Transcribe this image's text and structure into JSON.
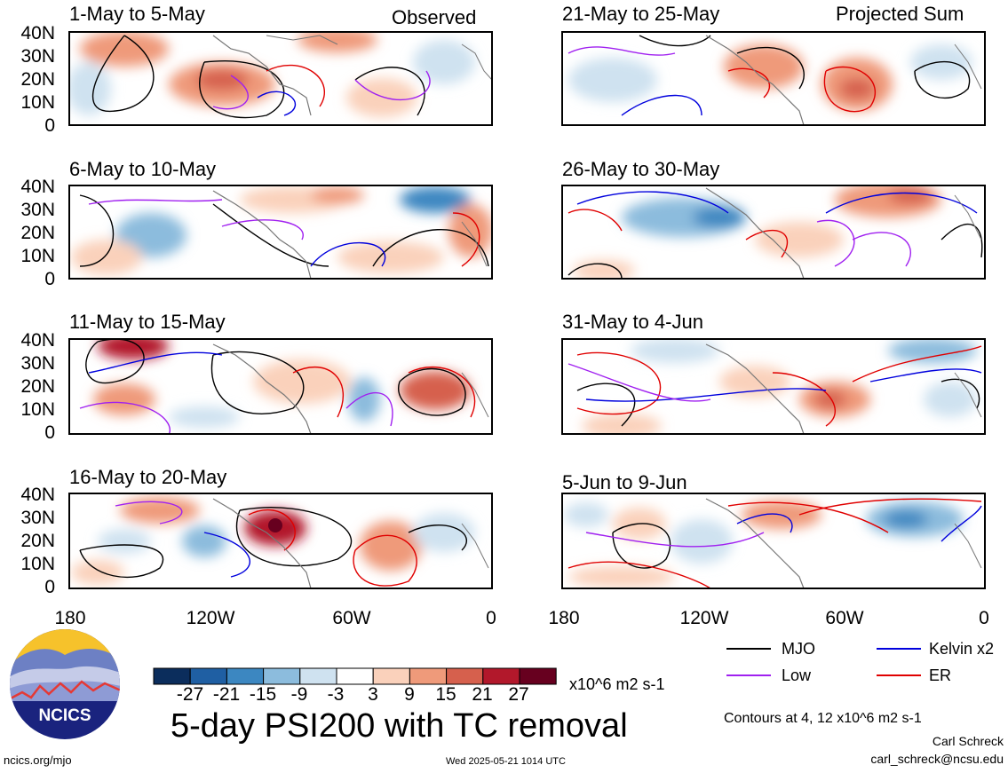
{
  "header": {
    "left_label": "Observed",
    "right_label": "Projected Sum"
  },
  "panels": [
    {
      "title": "1-May to 5-May",
      "kind": "observed"
    },
    {
      "title": "6-May to 10-May",
      "kind": "observed"
    },
    {
      "title": "11-May to 15-May",
      "kind": "observed"
    },
    {
      "title": "16-May to 20-May",
      "kind": "observed"
    },
    {
      "title": "21-May to 25-May",
      "kind": "projected"
    },
    {
      "title": "26-May to 30-May",
      "kind": "projected"
    },
    {
      "title": "31-May to 4-Jun",
      "kind": "projected"
    },
    {
      "title": "5-Jun to 9-Jun",
      "kind": "projected"
    }
  ],
  "y_ticks": [
    "40N",
    "30N",
    "20N",
    "10N",
    "0"
  ],
  "x_ticks": [
    "180",
    "120W",
    "60W",
    "0"
  ],
  "colorbar": {
    "labels": [
      "-27",
      "-21",
      "-15",
      "-9",
      "-3",
      "3",
      "9",
      "15",
      "21",
      "27"
    ],
    "colors": [
      "#0b2d5c",
      "#1f5fa3",
      "#3c87c1",
      "#8cbcdd",
      "#cfe2f0",
      "#ffffff",
      "#fad1bb",
      "#ef9a7a",
      "#d6604d",
      "#b2182b",
      "#67001f"
    ],
    "units": "x10^6 m2 s-1"
  },
  "legend": [
    {
      "label": "MJO",
      "color": "#000000"
    },
    {
      "label": "Kelvin x2",
      "color": "#0000dd"
    },
    {
      "label": "Low",
      "color": "#a020f0"
    },
    {
      "label": "ER",
      "color": "#e00000"
    }
  ],
  "logo": {
    "text": "NCICS"
  },
  "main_title": "5-day PSI200 with TC removal",
  "contours_note": "Contours at 4, 12 x10^6 m2 s-1",
  "author": "Carl Schreck",
  "email": "carl_schreck@ncsu.edu",
  "site": "ncics.org/mjo",
  "timestamp": "Wed 2025-05-21 1014 UTC"
}
